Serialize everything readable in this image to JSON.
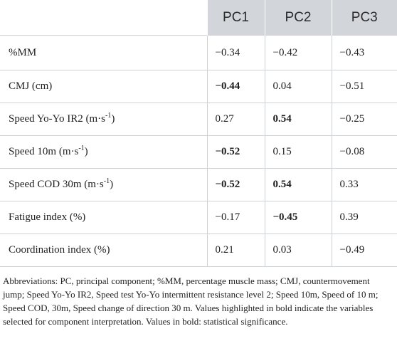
{
  "table": {
    "columns": [
      "",
      "PC1",
      "PC2",
      "PC3"
    ],
    "rows": [
      {
        "label": "%MM",
        "label_sup": "",
        "label_suffix": "",
        "values": [
          {
            "v": "−0.34",
            "bold": false
          },
          {
            "v": "−0.42",
            "bold": false
          },
          {
            "v": "−0.43",
            "bold": false
          }
        ]
      },
      {
        "label": "CMJ (cm)",
        "label_sup": "",
        "label_suffix": "",
        "values": [
          {
            "v": "−0.44",
            "bold": true
          },
          {
            "v": "0.04",
            "bold": false
          },
          {
            "v": "−0.51",
            "bold": false
          }
        ]
      },
      {
        "label": "Speed Yo-Yo IR2 (m·s",
        "label_sup": "-1",
        "label_suffix": ")",
        "values": [
          {
            "v": "0.27",
            "bold": false
          },
          {
            "v": "0.54",
            "bold": true
          },
          {
            "v": "−0.25",
            "bold": false
          }
        ]
      },
      {
        "label": "Speed 10m (m·s",
        "label_sup": "-1",
        "label_suffix": ")",
        "values": [
          {
            "v": "−0.52",
            "bold": true
          },
          {
            "v": "0.15",
            "bold": false
          },
          {
            "v": "−0.08",
            "bold": false
          }
        ]
      },
      {
        "label": "Speed COD 30m (m·s",
        "label_sup": "-1",
        "label_suffix": ")",
        "values": [
          {
            "v": "−0.52",
            "bold": true
          },
          {
            "v": "0.54",
            "bold": true
          },
          {
            "v": "0.33",
            "bold": false
          }
        ]
      },
      {
        "label": "Fatigue index (%)",
        "label_sup": "",
        "label_suffix": "",
        "values": [
          {
            "v": "−0.17",
            "bold": false
          },
          {
            "v": "−0.45",
            "bold": true
          },
          {
            "v": "0.39",
            "bold": false
          }
        ]
      },
      {
        "label": "Coordination index (%)",
        "label_sup": "",
        "label_suffix": "",
        "values": [
          {
            "v": "0.21",
            "bold": false
          },
          {
            "v": "0.03",
            "bold": false
          },
          {
            "v": "−0.49",
            "bold": false
          }
        ]
      }
    ]
  },
  "footnote": "Abbreviations: PC, principal component; %MM, percentage muscle mass; CMJ, countermovement jump; Speed Yo-Yo IR2, Speed test Yo-Yo intermittent resistance level 2; Speed 10m, Speed of 10 m; Speed COD, 30m, Speed change of direction 30 m. Values highlighted in bold indicate the variables selected for component interpretation. Values in bold: statistical significance.",
  "colors": {
    "header_bg": "#d2d6da",
    "grid_line": "#cfd3d6"
  }
}
